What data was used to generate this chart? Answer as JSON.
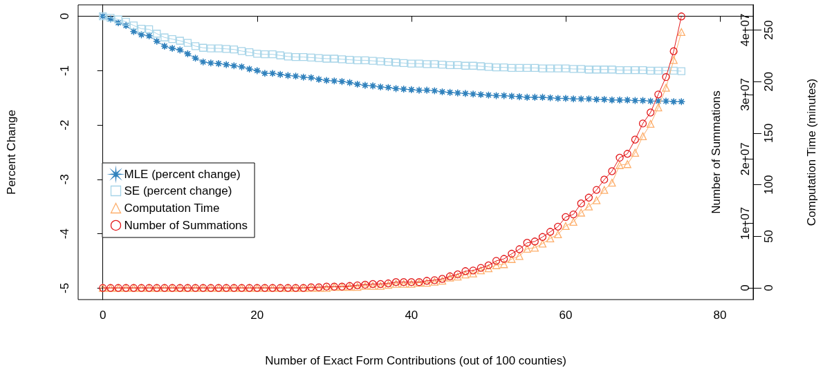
{
  "chart_data": {
    "type": "line",
    "xlabel": "Number of Exact Form Contributions (out of 100 counties)",
    "ylabel": "Percent Change",
    "y2label": "Number of Summations",
    "y3label": "Computation Time (minutes)",
    "x": [
      0,
      1,
      2,
      3,
      4,
      5,
      6,
      7,
      8,
      9,
      10,
      11,
      12,
      13,
      14,
      15,
      16,
      17,
      18,
      19,
      20,
      21,
      22,
      23,
      24,
      25,
      26,
      27,
      28,
      29,
      30,
      31,
      32,
      33,
      34,
      35,
      36,
      37,
      38,
      39,
      40,
      41,
      42,
      43,
      44,
      45,
      46,
      47,
      48,
      49,
      50,
      51,
      52,
      53,
      54,
      55,
      56,
      57,
      58,
      59,
      60,
      61,
      62,
      63,
      64,
      65,
      66,
      67,
      68,
      69,
      70,
      71,
      72,
      73,
      74,
      75
    ],
    "xlim": [
      -3.2,
      84.3
    ],
    "xticks": [
      0,
      20,
      40,
      60,
      80
    ],
    "ylim": [
      -5.21,
      0.21
    ],
    "yticks": [
      -5,
      -4,
      -3,
      -2,
      -1,
      0
    ],
    "y2lim": [
      -1810000,
      43900000
    ],
    "y2ticks": [
      0,
      {
        "value": 10000000,
        "label": "1e+07"
      },
      {
        "value": 20000000,
        "label": "2e+07"
      },
      {
        "value": 30000000,
        "label": "3e+07"
      },
      {
        "value": 40000000,
        "label": "4e+07"
      }
    ],
    "y3lim": [
      -11.3,
      274.4
    ],
    "y3ticks": [
      0,
      50,
      100,
      150,
      200,
      250
    ],
    "legend": "left",
    "series": [
      {
        "name": "MLE (percent change)",
        "color": "#3182bd",
        "marker": "star",
        "values": [
          0,
          -0.05,
          -0.12,
          -0.17,
          -0.28,
          -0.34,
          -0.36,
          -0.46,
          -0.55,
          -0.59,
          -0.62,
          -0.69,
          -0.77,
          -0.84,
          -0.86,
          -0.87,
          -0.89,
          -0.91,
          -0.93,
          -0.97,
          -1.0,
          -1.05,
          -1.05,
          -1.07,
          -1.09,
          -1.1,
          -1.12,
          -1.13,
          -1.16,
          -1.18,
          -1.19,
          -1.2,
          -1.22,
          -1.25,
          -1.27,
          -1.28,
          -1.3,
          -1.31,
          -1.33,
          -1.34,
          -1.35,
          -1.36,
          -1.36,
          -1.37,
          -1.39,
          -1.4,
          -1.41,
          -1.42,
          -1.43,
          -1.44,
          -1.45,
          -1.46,
          -1.46,
          -1.47,
          -1.48,
          -1.49,
          -1.49,
          -1.49,
          -1.5,
          -1.51,
          -1.51,
          -1.52,
          -1.52,
          -1.52,
          -1.53,
          -1.53,
          -1.54,
          -1.54,
          -1.54,
          -1.55,
          -1.55,
          -1.56,
          -1.56,
          -1.56,
          -1.57,
          -1.57
        ]
      },
      {
        "name": "SE (percent change)",
        "color": "#a6d4e8",
        "marker": "square",
        "values": [
          0,
          -0.03,
          -0.06,
          -0.1,
          -0.17,
          -0.23,
          -0.24,
          -0.32,
          -0.39,
          -0.42,
          -0.45,
          -0.49,
          -0.55,
          -0.58,
          -0.59,
          -0.59,
          -0.6,
          -0.61,
          -0.64,
          -0.66,
          -0.69,
          -0.7,
          -0.7,
          -0.72,
          -0.74,
          -0.75,
          -0.75,
          -0.76,
          -0.77,
          -0.78,
          -0.78,
          -0.79,
          -0.8,
          -0.81,
          -0.81,
          -0.82,
          -0.83,
          -0.84,
          -0.85,
          -0.86,
          -0.87,
          -0.87,
          -0.88,
          -0.88,
          -0.89,
          -0.9,
          -0.9,
          -0.91,
          -0.91,
          -0.92,
          -0.93,
          -0.94,
          -0.94,
          -0.95,
          -0.95,
          -0.95,
          -0.95,
          -0.96,
          -0.96,
          -0.96,
          -0.96,
          -0.97,
          -0.97,
          -0.98,
          -0.98,
          -0.98,
          -0.98,
          -0.99,
          -0.99,
          -0.99,
          -0.99,
          -1.0,
          -1.0,
          -1.0,
          -1.0,
          -1.01
        ]
      },
      {
        "name": "Computation Time",
        "color": "#fdae6b",
        "marker": "triangle",
        "axis": "y3",
        "values": [
          0,
          0,
          0,
          0,
          0,
          0,
          0,
          0,
          0,
          0,
          0,
          0,
          0,
          0,
          0,
          0,
          0,
          0,
          0,
          0,
          0,
          0,
          0,
          0,
          0,
          0,
          0,
          0,
          0,
          0,
          1,
          1,
          1,
          1,
          2,
          2,
          2,
          3,
          4,
          4,
          4,
          5,
          5,
          6,
          7,
          10,
          11,
          13,
          14,
          17,
          19,
          22,
          23,
          28,
          31,
          38,
          39,
          43,
          48,
          52,
          60,
          64,
          73,
          79,
          85,
          95,
          102,
          119,
          120,
          131,
          147,
          159,
          175,
          194,
          221,
          248
        ]
      },
      {
        "name": "Number of Summations",
        "color": "#e31a1c",
        "marker": "circle",
        "axis": "y2",
        "values": [
          0,
          0,
          0,
          0,
          0,
          0,
          0,
          0,
          0,
          0,
          0,
          0,
          0,
          0,
          0,
          0,
          0,
          0,
          0,
          0,
          0,
          0,
          0,
          0,
          0,
          0,
          0,
          100000,
          100000,
          200000,
          200000,
          200000,
          300000,
          400000,
          500000,
          600000,
          600000,
          700000,
          900000,
          900000,
          900000,
          900000,
          1100000,
          1200000,
          1400000,
          1800000,
          2100000,
          2600000,
          2700000,
          3100000,
          3500000,
          4200000,
          4500000,
          5300000,
          6000000,
          7000000,
          7200000,
          7900000,
          8700000,
          9500000,
          11000000,
          11400000,
          13100000,
          14000000,
          15200000,
          16800000,
          18100000,
          20200000,
          20800000,
          23000000,
          25500000,
          27200000,
          30000000,
          32700000,
          36700000,
          42100000
        ]
      }
    ]
  }
}
